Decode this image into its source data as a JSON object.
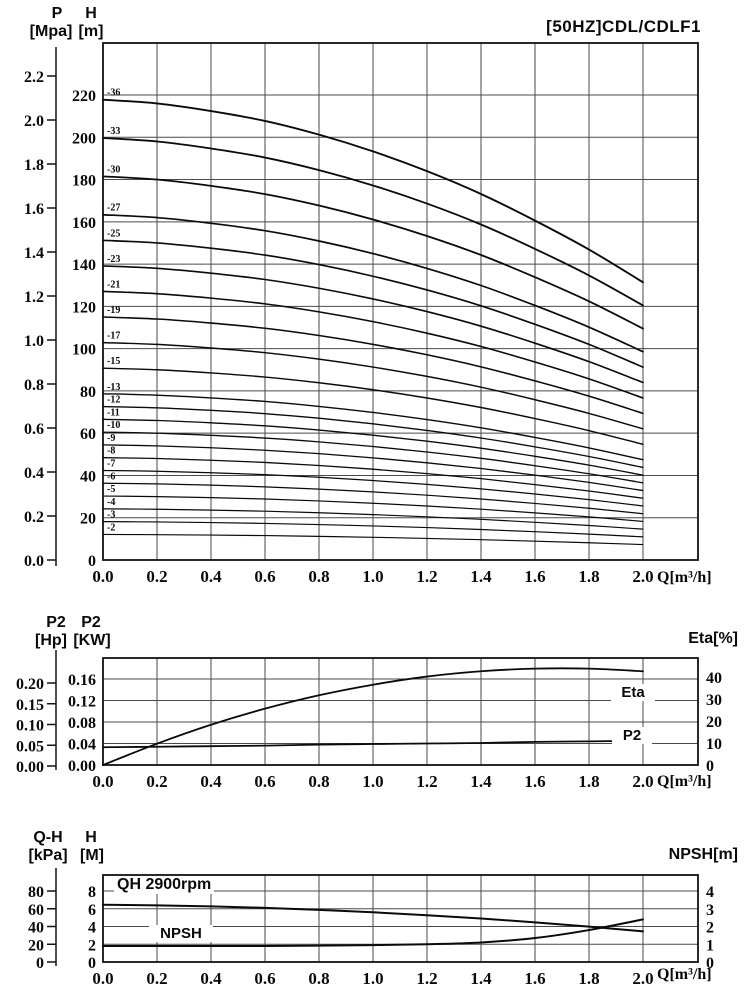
{
  "colors": {
    "ink": "#0a0a0a",
    "grid": "#4a4a4a",
    "paper": "#ffffff"
  },
  "overlays": {
    "title": "[50HZ]CDL/CDLF1",
    "hq": {
      "ax1_name": "P",
      "ax1_unit": "[Mpa]",
      "ax2_name": "H",
      "ax2_unit": "[m]",
      "q_label": "Q[m³/h]"
    },
    "power": {
      "ax1_name": "P2",
      "ax1_unit": "[Hp]",
      "ax2_name": "P2",
      "ax2_unit": "[KW]",
      "right_label": "Eta[%]",
      "eta_label": "Eta",
      "p2_label": "P2",
      "q_label": "Q[m³/h]"
    },
    "npsh": {
      "ax1_name": "Q-H",
      "ax1_unit": "[kPa]",
      "ax2_name": "H",
      "ax2_unit": "[M]",
      "right_label": "NPSH[m]",
      "rpm_label": "QH 2900rpm",
      "npsh_label": "NPSH",
      "q_label": "Q[m³/h]"
    }
  },
  "chart_data": [
    {
      "id": "hq-family",
      "type": "line",
      "title": "[50HZ]CDL/CDLF1",
      "xlabel": "Q[m³/h]",
      "xlim": [
        0,
        2.2
      ],
      "ylim_m": [
        0,
        244
      ],
      "x_ticks": [
        "0.0",
        "0.2",
        "0.4",
        "0.6",
        "0.8",
        "1.0",
        "1.2",
        "1.4",
        "1.6",
        "1.8",
        "2.0"
      ],
      "p_ticks": [
        "0.0",
        "0.2",
        "0.4",
        "0.6",
        "0.8",
        "1.0",
        "1.2",
        "1.4",
        "1.6",
        "1.8",
        "2.0",
        "2.2"
      ],
      "h_ticks": [
        "0",
        "20",
        "40",
        "60",
        "80",
        "100",
        "120",
        "140",
        "160",
        "180",
        "200",
        "220"
      ],
      "x": [
        0,
        0.2,
        0.4,
        0.6,
        0.8,
        1.0,
        1.2,
        1.4,
        1.6,
        1.8,
        2.0
      ],
      "head_per_stage_m": [
        6.05,
        6.0,
        5.9,
        5.77,
        5.59,
        5.37,
        5.11,
        4.81,
        4.46,
        4.08,
        3.65
      ],
      "stages": [
        36,
        33,
        30,
        27,
        25,
        23,
        21,
        19,
        17,
        15,
        13,
        12,
        11,
        10,
        9,
        8,
        7,
        6,
        5,
        4,
        3,
        2
      ],
      "stage_labels": [
        "-36",
        "-33",
        "-30",
        "-27",
        "-25",
        "-23",
        "-21",
        "-19",
        "-17",
        "-15",
        "-13",
        "-12",
        "-11",
        "-10",
        "-9",
        "-8",
        "-7",
        "-6",
        "-5",
        "-4",
        "-3",
        "-2"
      ]
    },
    {
      "id": "power-eta",
      "type": "line",
      "xlabel": "Q[m³/h]",
      "x_ticks": [
        "0.0",
        "0.2",
        "0.4",
        "0.6",
        "0.8",
        "1.0",
        "1.2",
        "1.4",
        "1.6",
        "1.8",
        "2.0"
      ],
      "hp_ticks": [
        "0.00",
        "0.05",
        "0.10",
        "0.15",
        "0.20"
      ],
      "kw_ticks": [
        "0.00",
        "0.04",
        "0.08",
        "0.12",
        "0.16"
      ],
      "eta_ticks": [
        "0",
        "10",
        "20",
        "30",
        "40"
      ],
      "x": [
        0,
        0.2,
        0.4,
        0.6,
        0.8,
        1.0,
        1.2,
        1.4,
        1.6,
        1.8,
        2.0
      ],
      "series": [
        {
          "name": "Eta",
          "axis": "eta",
          "values": [
            0,
            9.7,
            18.3,
            25.6,
            31.7,
            36.5,
            40.2,
            42.6,
            43.8,
            43.8,
            42.6
          ]
        },
        {
          "name": "P2",
          "axis": "kw",
          "values": [
            0.033,
            0.034,
            0.035,
            0.036,
            0.038,
            0.039,
            0.04,
            0.041,
            0.043,
            0.044,
            0.045
          ]
        }
      ]
    },
    {
      "id": "qh-npsh",
      "type": "line",
      "xlabel": "Q[m³/h]",
      "x_ticks": [
        "0.0",
        "0.2",
        "0.4",
        "0.6",
        "0.8",
        "1.0",
        "1.2",
        "1.4",
        "1.6",
        "1.8",
        "2.0"
      ],
      "kpa_ticks": [
        "0",
        "20",
        "40",
        "60",
        "80"
      ],
      "m_ticks": [
        "0",
        "2",
        "4",
        "6",
        "8"
      ],
      "npsh_ticks": [
        "0",
        "1",
        "2",
        "3",
        "4"
      ],
      "x": [
        0,
        0.2,
        0.4,
        0.6,
        0.8,
        1.0,
        1.2,
        1.4,
        1.6,
        1.8,
        2.0
      ],
      "series": [
        {
          "name": "QH",
          "axis": "m",
          "values": [
            6.45,
            6.38,
            6.27,
            6.1,
            5.87,
            5.6,
            5.27,
            4.9,
            4.47,
            3.98,
            3.45
          ]
        },
        {
          "name": "NPSH",
          "axis": "npsh",
          "values": [
            0.9,
            0.9,
            0.9,
            0.9,
            0.92,
            0.95,
            1.0,
            1.1,
            1.35,
            1.8,
            2.4
          ]
        }
      ]
    }
  ]
}
